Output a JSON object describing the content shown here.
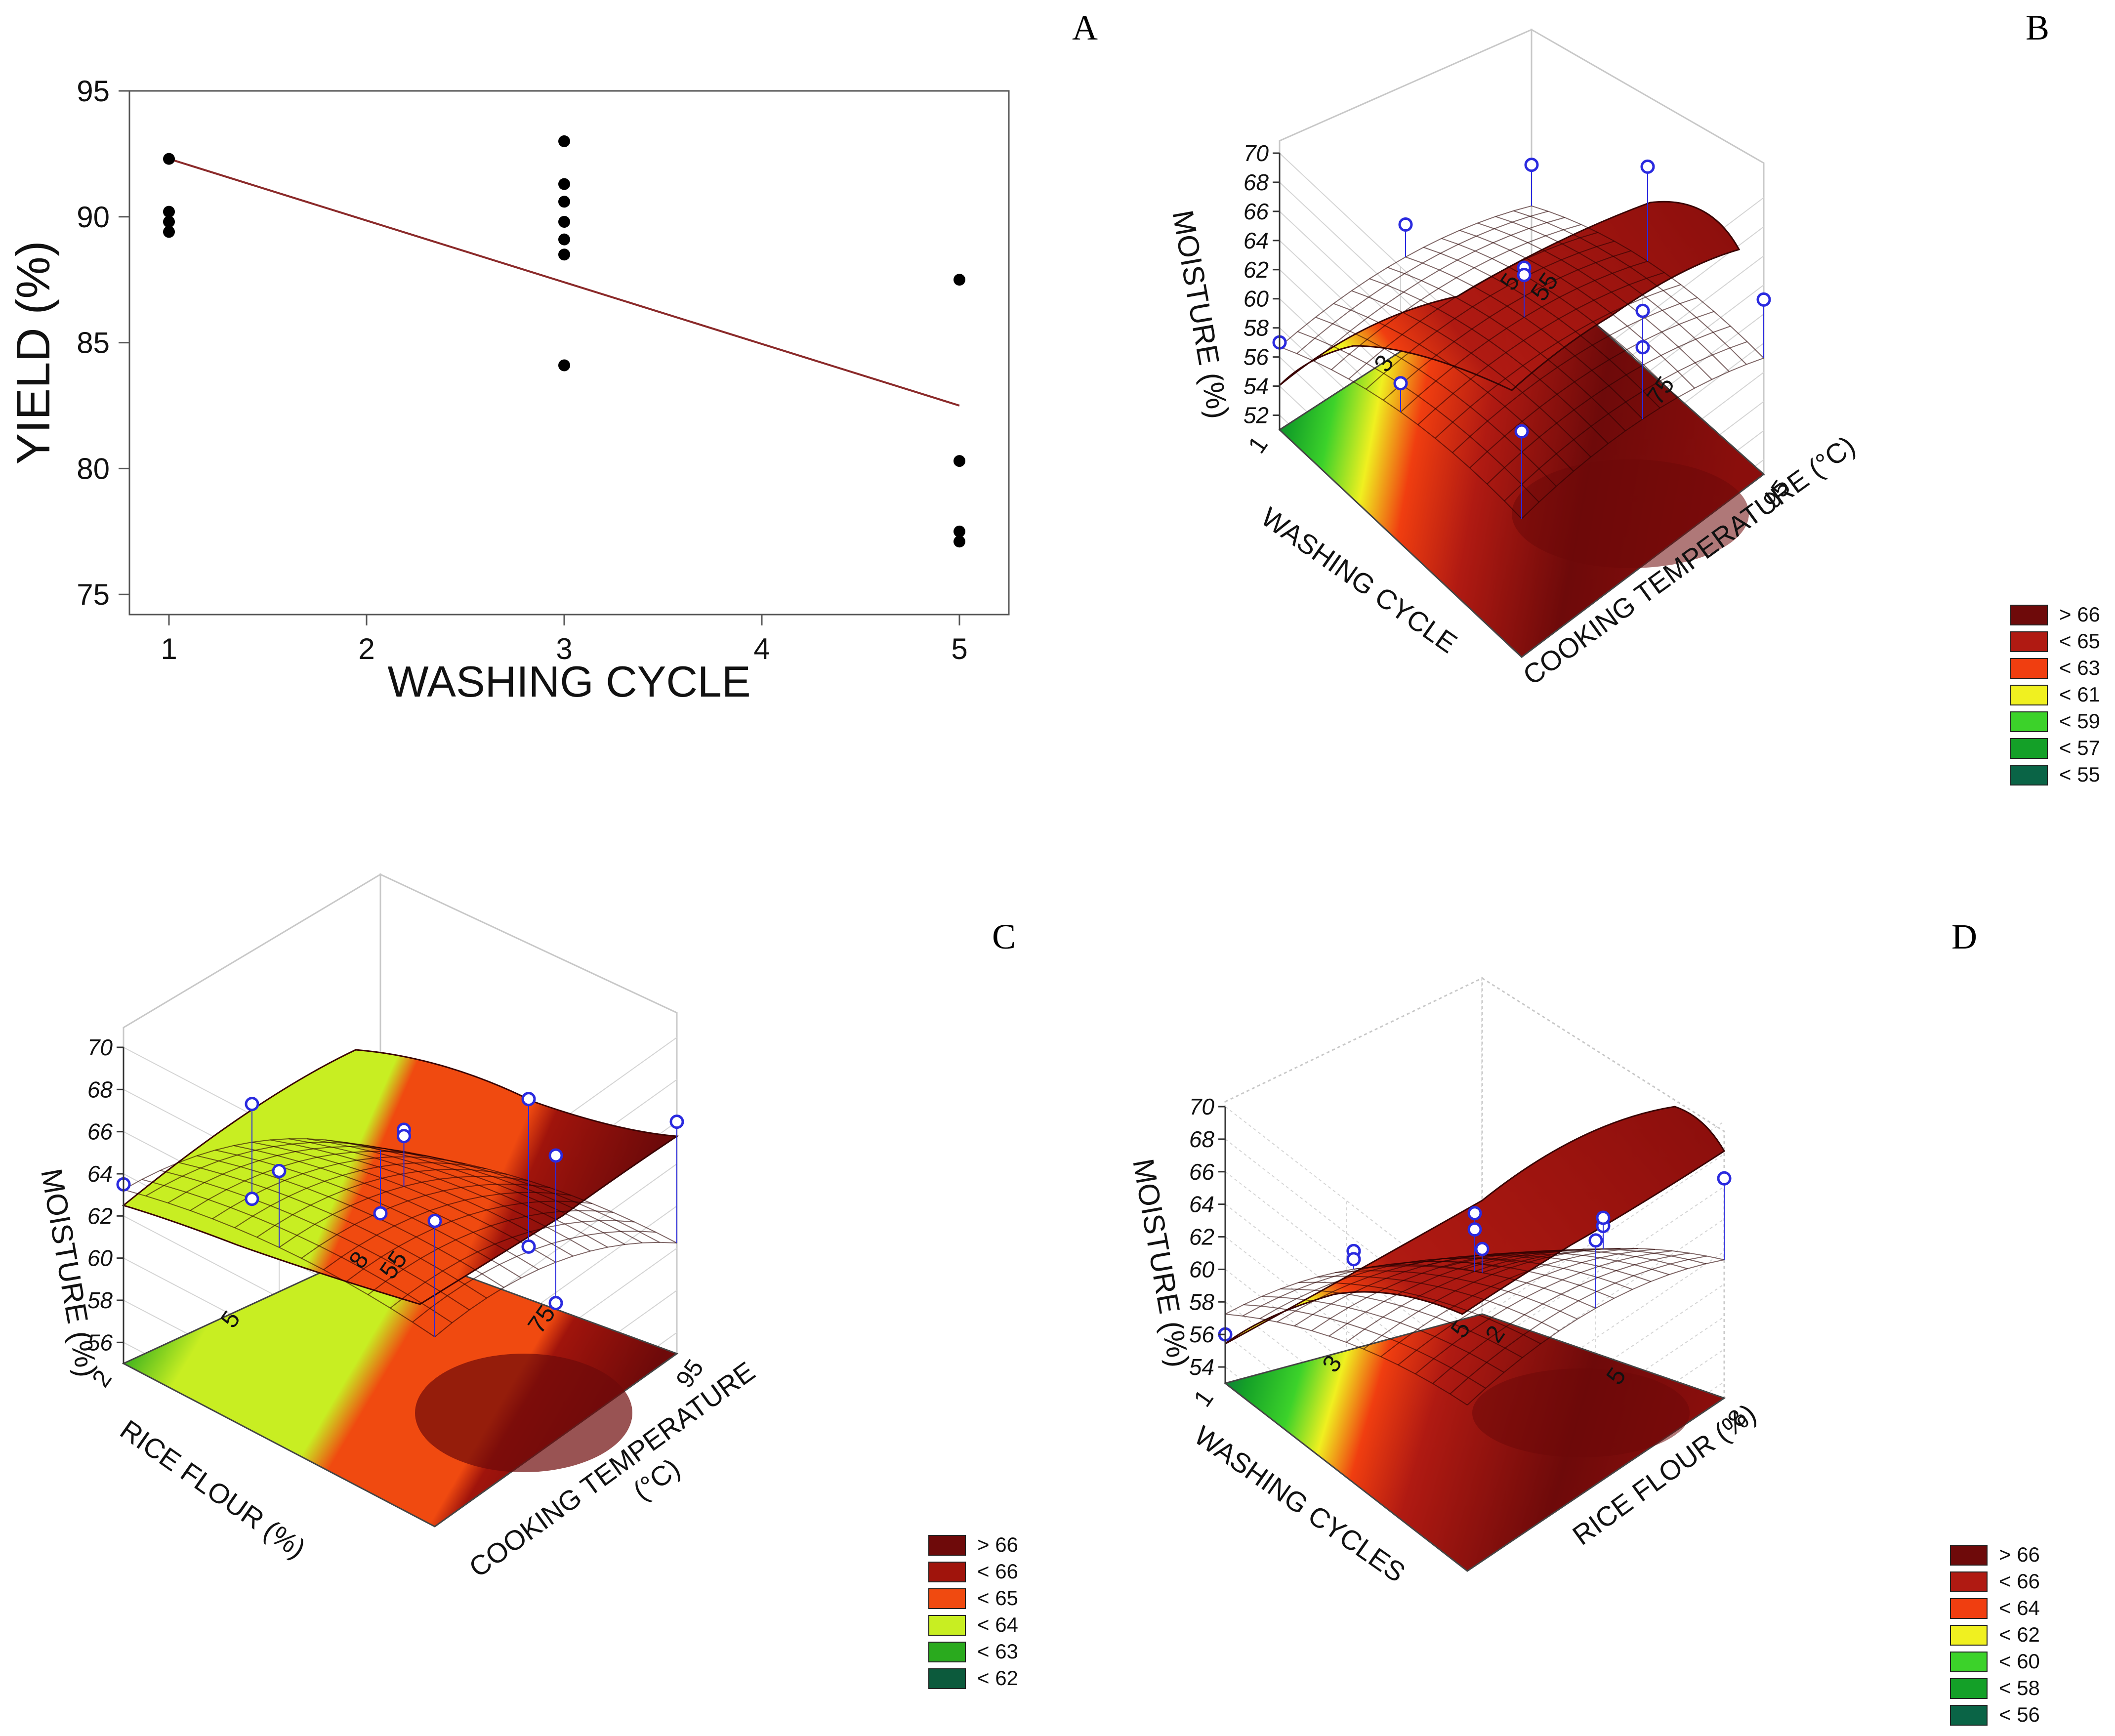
{
  "panel_labels": {
    "a": "A",
    "b": "B",
    "c": "C",
    "d": "D"
  },
  "colors": {
    "point": "#000000",
    "fit_line": "#8b2a2a",
    "axis": "#1a1a1a",
    "obs_point": "#2a2adf",
    "grid3d": "#c8c8c8"
  },
  "chart_data": [
    {
      "panel": "A",
      "type": "scatter",
      "title": "",
      "xlabel": "WASHING CYCLE",
      "ylabel": "YIELD (%)",
      "xlim": [
        0.8,
        5.25
      ],
      "ylim": [
        74.2,
        95
      ],
      "xticks": [
        1,
        2,
        3,
        4,
        5
      ],
      "xtick_labels": [
        "1",
        "2",
        "3",
        "4",
        "5"
      ],
      "yticks": [
        75,
        80,
        85,
        90,
        95
      ],
      "ytick_labels": [
        "75",
        "80",
        "85",
        "90",
        "95"
      ],
      "points": [
        {
          "x": 1,
          "y": 92.3
        },
        {
          "x": 1,
          "y": 90.2
        },
        {
          "x": 1,
          "y": 89.8
        },
        {
          "x": 1,
          "y": 89.4
        },
        {
          "x": 3,
          "y": 93.0
        },
        {
          "x": 3,
          "y": 91.3
        },
        {
          "x": 3,
          "y": 90.6
        },
        {
          "x": 3,
          "y": 89.8
        },
        {
          "x": 3,
          "y": 89.1
        },
        {
          "x": 3,
          "y": 88.5
        },
        {
          "x": 3,
          "y": 84.1
        },
        {
          "x": 5,
          "y": 87.5
        },
        {
          "x": 5,
          "y": 80.3
        },
        {
          "x": 5,
          "y": 77.5
        },
        {
          "x": 5,
          "y": 77.1
        }
      ],
      "fit_line": {
        "x": [
          1,
          5
        ],
        "y": [
          92.3,
          82.5
        ]
      }
    },
    {
      "panel": "B",
      "type": "surface3d",
      "zlabel": "MOISTURE (%)",
      "x_axis_label": "WASHING CYCLE",
      "y_axis_label": "COOKING TEMPERATURE (°C)",
      "x_ticks": [
        "1",
        "3",
        "5"
      ],
      "y_ticks": [
        "55",
        "75",
        "95"
      ],
      "zticks": [
        "52",
        "54",
        "56",
        "58",
        "60",
        "62",
        "64",
        "66",
        "68",
        "70"
      ],
      "x_range": [
        1,
        5
      ],
      "y_range": [
        55,
        95
      ],
      "z_range": [
        51,
        70
      ],
      "legend": [
        {
          "label": "> 66",
          "color": "#6e0a0a"
        },
        {
          "label": "< 65",
          "color": "#b01a12"
        },
        {
          "label": "< 63",
          "color": "#f03e10"
        },
        {
          "label": "< 61",
          "color": "#f0f020"
        },
        {
          "label": "< 59",
          "color": "#3cd22a"
        },
        {
          "label": "< 57",
          "color": "#14a028"
        },
        {
          "label": "< 55",
          "color": "#0a6446"
        }
      ],
      "observations": [
        {
          "x": 1,
          "y": 55,
          "z": 57.0
        },
        {
          "x": 1,
          "y": 95,
          "z": 66.5
        },
        {
          "x": 3,
          "y": 55,
          "z": 59.5
        },
        {
          "x": 3,
          "y": 75,
          "z": 64.0
        },
        {
          "x": 3,
          "y": 75,
          "z": 63.5
        },
        {
          "x": 3,
          "y": 95,
          "z": 66.0
        },
        {
          "x": 5,
          "y": 55,
          "z": 58.0
        },
        {
          "x": 5,
          "y": 95,
          "z": 63.0
        },
        {
          "x": 5,
          "y": 75,
          "z": 65.0
        },
        {
          "x": 1,
          "y": 75,
          "z": 62.0
        },
        {
          "x": 3,
          "y": 95,
          "z": 68.5
        }
      ]
    },
    {
      "panel": "C",
      "type": "surface3d",
      "zlabel": "MOISTURE (%)",
      "x_axis_label": "RICE FLOUR (%)",
      "y_axis_label": "COOKING TEMPERATURE (°C)",
      "y_axis_label_line1": "COOKING TEMPERATURE",
      "y_axis_label_line2": "(°C)",
      "x_ticks": [
        "2",
        "5",
        "8"
      ],
      "y_ticks": [
        "55",
        "75",
        "95"
      ],
      "zticks": [
        "56",
        "58",
        "60",
        "62",
        "64",
        "66",
        "68",
        "70"
      ],
      "x_range": [
        2,
        8
      ],
      "y_range": [
        55,
        95
      ],
      "z_range": [
        55,
        70
      ],
      "legend": [
        {
          "label": "> 66",
          "color": "#6e0a0a"
        },
        {
          "label": "< 66",
          "color": "#a0140c"
        },
        {
          "label": "< 65",
          "color": "#f04a10"
        },
        {
          "label": "< 64",
          "color": "#c8ee22"
        },
        {
          "label": "< 63",
          "color": "#2aaa1e"
        },
        {
          "label": "< 62",
          "color": "#0c5a3c"
        }
      ],
      "observations": [
        {
          "x": 2,
          "y": 55,
          "z": 63.5
        },
        {
          "x": 2,
          "y": 75,
          "z": 68.0
        },
        {
          "x": 2,
          "y": 95,
          "z": 69.5
        },
        {
          "x": 5,
          "y": 55,
          "z": 60.0
        },
        {
          "x": 5,
          "y": 55,
          "z": 64.5
        },
        {
          "x": 5,
          "y": 75,
          "z": 66.5
        },
        {
          "x": 5,
          "y": 75,
          "z": 66.2
        },
        {
          "x": 5,
          "y": 95,
          "z": 68.5
        },
        {
          "x": 8,
          "y": 55,
          "z": 56.5
        },
        {
          "x": 8,
          "y": 75,
          "z": 57.5
        },
        {
          "x": 8,
          "y": 75,
          "z": 64.5
        },
        {
          "x": 8,
          "y": 95,
          "z": 66.0
        },
        {
          "x": 5,
          "y": 95,
          "z": 61.5
        }
      ]
    },
    {
      "panel": "D",
      "type": "surface3d",
      "zlabel": "MOISTURE (%)",
      "x_axis_label": "WASHING CYCLES",
      "y_axis_label": "RICE FLOUR (%)",
      "x_ticks": [
        "1",
        "3",
        "5"
      ],
      "y_ticks": [
        "2",
        "5",
        "8"
      ],
      "zticks": [
        "54",
        "56",
        "58",
        "60",
        "62",
        "64",
        "66",
        "68",
        "70"
      ],
      "x_range": [
        1,
        5
      ],
      "y_range": [
        2,
        8
      ],
      "z_range": [
        53,
        70
      ],
      "legend": [
        {
          "label": "> 66",
          "color": "#6e0a0a"
        },
        {
          "label": "< 66",
          "color": "#b01a12"
        },
        {
          "label": "< 64",
          "color": "#f03e10"
        },
        {
          "label": "< 62",
          "color": "#f0f020"
        },
        {
          "label": "< 60",
          "color": "#3cd22a"
        },
        {
          "label": "< 58",
          "color": "#14a028"
        },
        {
          "label": "< 56",
          "color": "#0a6446"
        }
      ],
      "observations": [
        {
          "x": 1,
          "y": 2,
          "z": 56.0
        },
        {
          "x": 3,
          "y": 2,
          "z": 59.0
        },
        {
          "x": 3,
          "y": 2,
          "z": 58.5
        },
        {
          "x": 3,
          "y": 5,
          "z": 65.5
        },
        {
          "x": 3,
          "y": 5,
          "z": 64.5
        },
        {
          "x": 5,
          "y": 2,
          "z": 57.0
        },
        {
          "x": 5,
          "y": 8,
          "z": 66.5
        },
        {
          "x": 3,
          "y": 8,
          "z": 68.0
        },
        {
          "x": 5,
          "y": 5,
          "z": 61.0
        },
        {
          "x": 5,
          "y": 5,
          "z": 61.5
        }
      ]
    }
  ]
}
